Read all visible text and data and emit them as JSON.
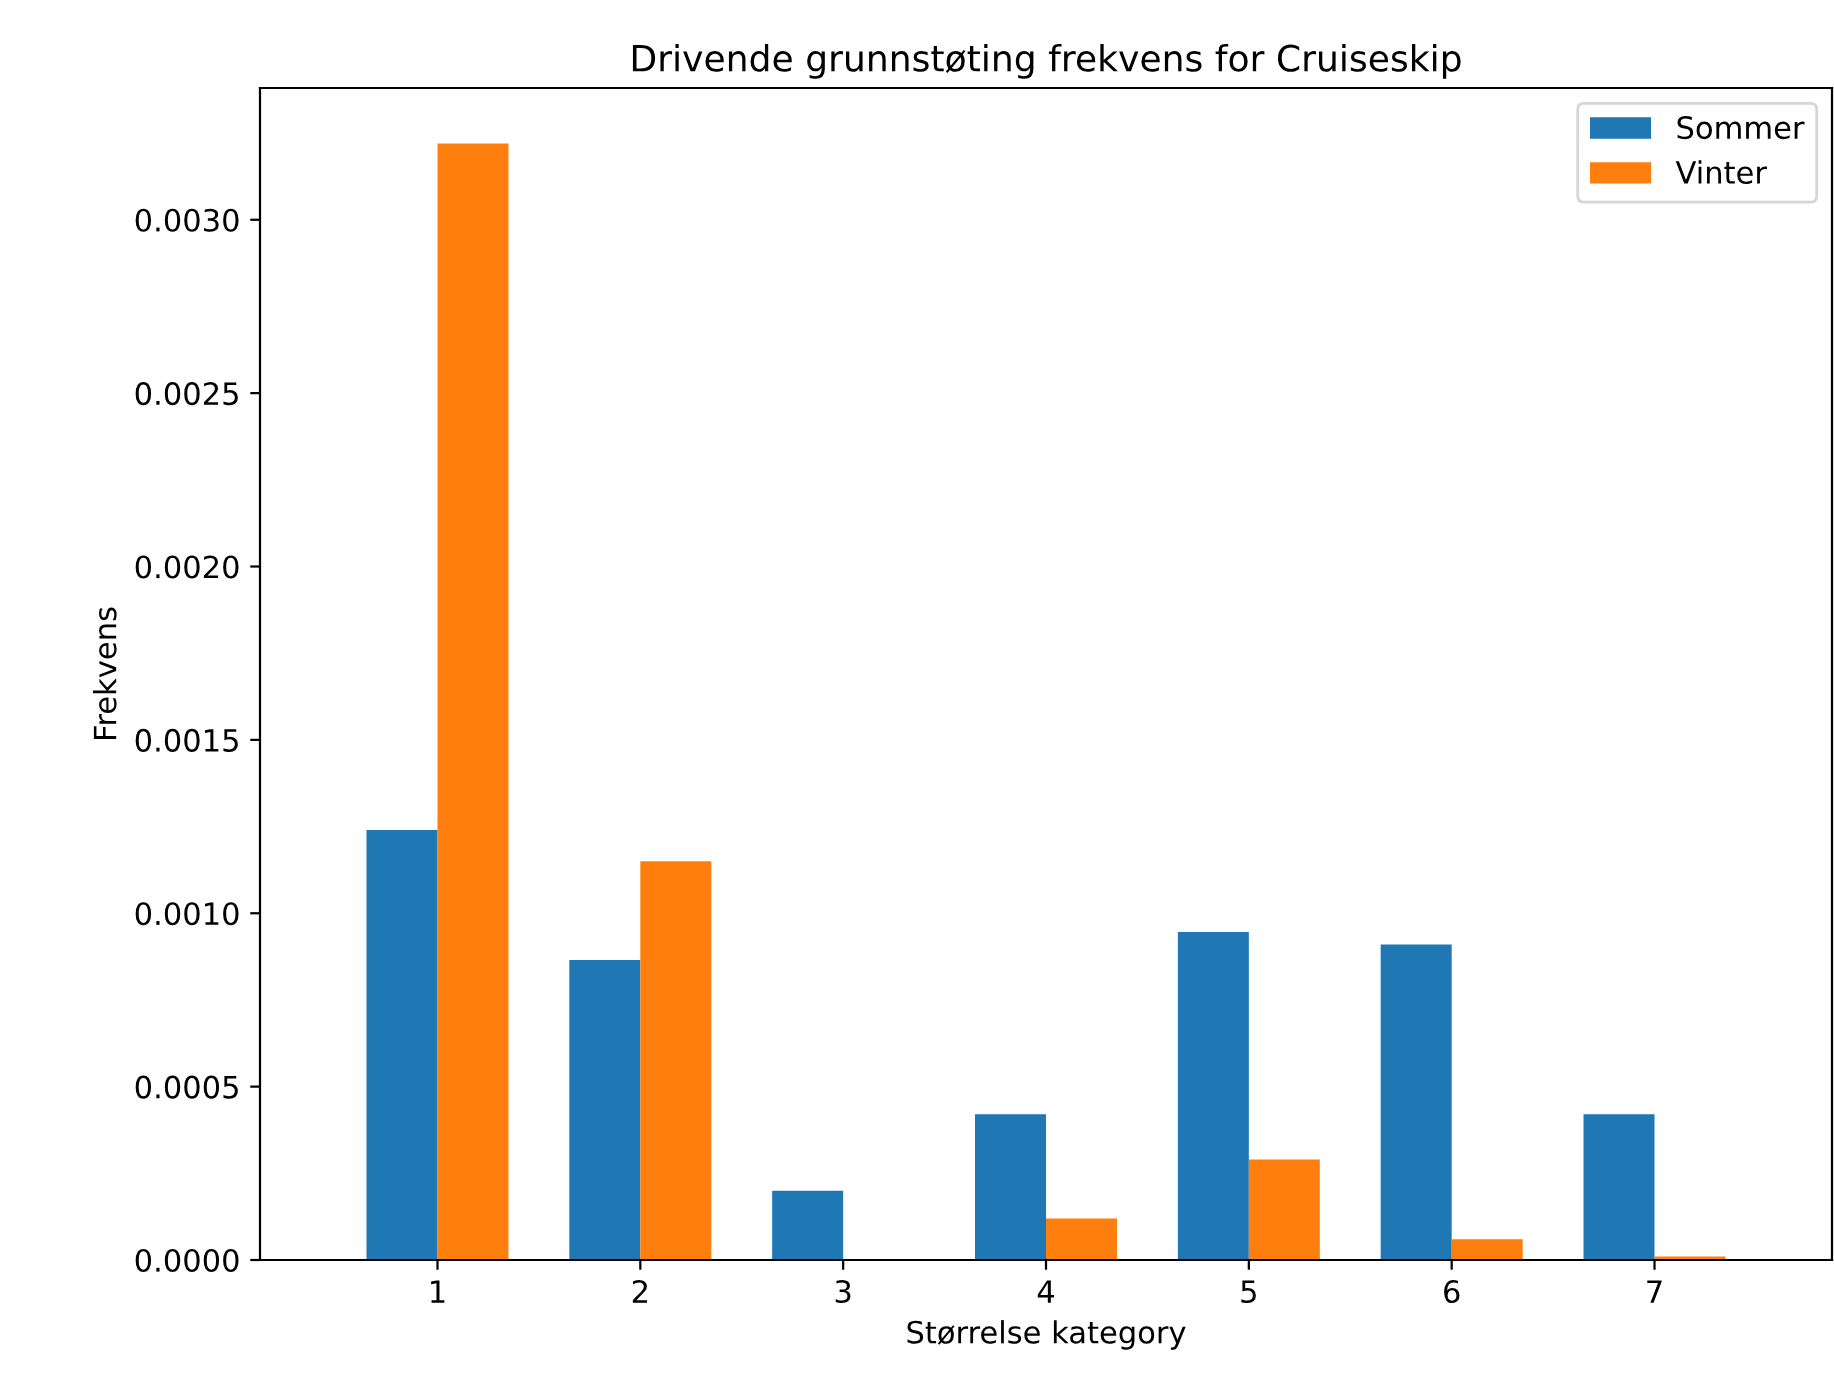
{
  "chart_data": {
    "type": "bar",
    "title": "Drivende grunnstøting frekvens for Cruiseskip",
    "xlabel": "Størrelse kategory",
    "ylabel": "Frekvens",
    "categories": [
      "1",
      "2",
      "3",
      "4",
      "5",
      "6",
      "7"
    ],
    "series": [
      {
        "name": "Sommer",
        "color": "#1f77b4",
        "values": [
          0.00124,
          0.000865,
          0.0002,
          0.00042,
          0.000946,
          0.00091,
          0.00042
        ]
      },
      {
        "name": "Vinter",
        "color": "#ff7f0e",
        "values": [
          0.00322,
          0.00115,
          0,
          0.00012,
          0.00029,
          6e-05,
          1e-05
        ]
      }
    ],
    "ylim": [
      0,
      0.00338
    ],
    "yticks": [
      {
        "value": 0,
        "label": "0.0000"
      },
      {
        "value": 0.0005,
        "label": "0.0005"
      },
      {
        "value": 0.001,
        "label": "0.0010"
      },
      {
        "value": 0.0015,
        "label": "0.0015"
      },
      {
        "value": 0.002,
        "label": "0.0020"
      },
      {
        "value": 0.0025,
        "label": "0.0025"
      },
      {
        "value": 0.003,
        "label": "0.0030"
      }
    ],
    "grid": false,
    "legend": "top right"
  }
}
